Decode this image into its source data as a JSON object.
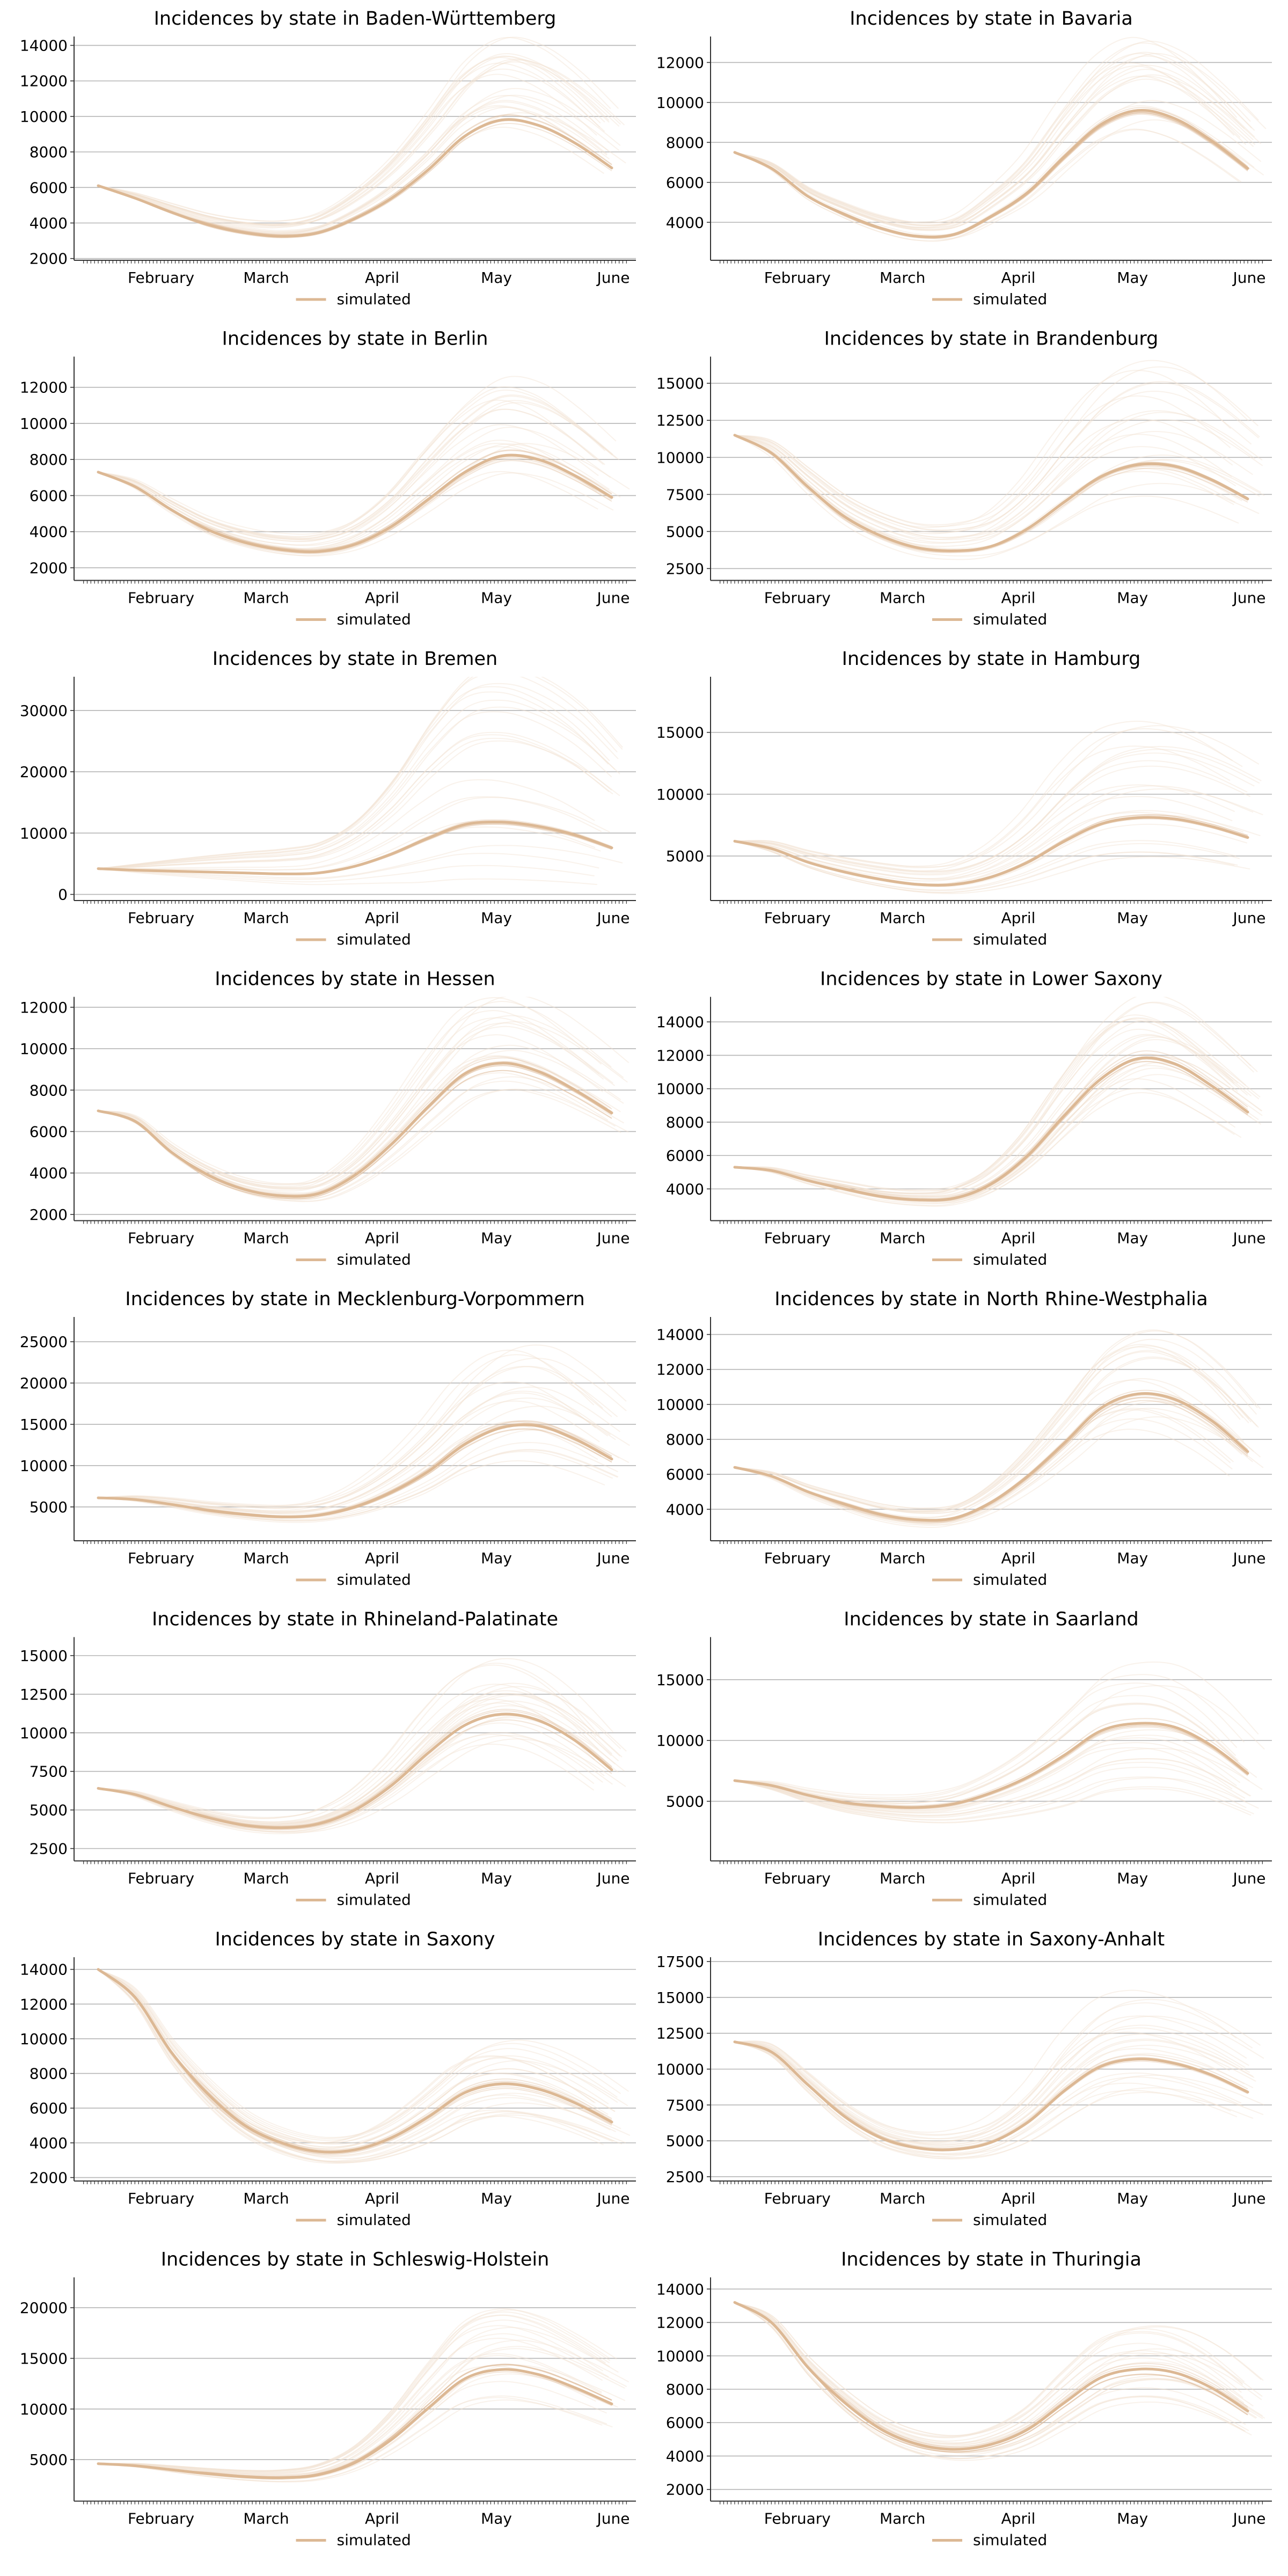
{
  "figure": {
    "accent_color": "#dcb894",
    "band_color": "#f2e3d3",
    "grid_color": "#b5b5b5",
    "axis_color": "#333333"
  },
  "chart_data": [
    {
      "type": "line",
      "title": "Incidences by state in Baden-Württemberg",
      "categories": [
        "February",
        "March",
        "April",
        "May",
        "June"
      ],
      "x": [
        0,
        10,
        20,
        30,
        40,
        50,
        60,
        70,
        80,
        90,
        100,
        110,
        120,
        130,
        140
      ],
      "yticks": [
        2000,
        4000,
        6000,
        8000,
        10000,
        12000,
        14000
      ],
      "ylim": [
        1900,
        14500
      ],
      "legend": [
        "simulated"
      ],
      "legend_position": "bottom-center",
      "grid": "horizontal",
      "series": [
        {
          "name": "simulated",
          "values": [
            6100,
            5400,
            4600,
            3900,
            3450,
            3250,
            3450,
            4250,
            5400,
            7000,
            8900,
            9800,
            9500,
            8500,
            7100
          ]
        }
      ],
      "spread": [
        0.95,
        1.45
      ]
    },
    {
      "type": "line",
      "title": "Incidences by state in Bavaria",
      "categories": [
        "February",
        "March",
        "April",
        "May",
        "June"
      ],
      "x": [
        0,
        10,
        20,
        30,
        40,
        50,
        60,
        70,
        80,
        90,
        100,
        110,
        120,
        130,
        140
      ],
      "yticks": [
        4000,
        6000,
        8000,
        10000,
        12000
      ],
      "ylim": [
        2100,
        13300
      ],
      "legend": [
        "simulated"
      ],
      "legend_position": "bottom-center",
      "grid": "horizontal",
      "series": [
        {
          "name": "simulated",
          "values": [
            7500,
            6700,
            5300,
            4400,
            3700,
            3300,
            3400,
            4300,
            5500,
            7300,
            8900,
            9600,
            9200,
            8100,
            6700
          ]
        }
      ],
      "spread": [
        0.9,
        1.4
      ]
    },
    {
      "type": "line",
      "title": "Incidences by state in Berlin",
      "categories": [
        "February",
        "March",
        "April",
        "May",
        "June"
      ],
      "x": [
        0,
        10,
        20,
        30,
        40,
        50,
        60,
        70,
        80,
        90,
        100,
        110,
        120,
        130,
        140
      ],
      "yticks": [
        2000,
        4000,
        6000,
        8000,
        10000,
        12000
      ],
      "ylim": [
        1300,
        13700
      ],
      "legend": [
        "simulated"
      ],
      "legend_position": "bottom-center",
      "grid": "horizontal",
      "series": [
        {
          "name": "simulated",
          "values": [
            7300,
            6500,
            5200,
            4100,
            3400,
            3000,
            2900,
            3300,
            4300,
            5800,
            7300,
            8200,
            8000,
            7100,
            5900
          ]
        }
      ],
      "spread": [
        0.8,
        1.6
      ]
    },
    {
      "type": "line",
      "title": "Incidences by state in Brandenburg",
      "categories": [
        "February",
        "March",
        "April",
        "May",
        "June"
      ],
      "x": [
        0,
        10,
        20,
        30,
        40,
        50,
        60,
        70,
        80,
        90,
        100,
        110,
        120,
        130,
        140
      ],
      "yticks": [
        2500,
        5000,
        7500,
        10000,
        12500,
        15000
      ],
      "ylim": [
        1700,
        16800
      ],
      "legend": [
        "simulated"
      ],
      "legend_position": "bottom-center",
      "grid": "horizontal",
      "series": [
        {
          "name": "simulated",
          "values": [
            11500,
            10300,
            8000,
            6000,
            4700,
            3900,
            3700,
            4000,
            5200,
            7000,
            8700,
            9500,
            9400,
            8500,
            7200
          ]
        }
      ],
      "spread": [
        0.75,
        1.7
      ]
    },
    {
      "type": "line",
      "title": "Incidences by state in Bremen",
      "categories": [
        "February",
        "March",
        "April",
        "May",
        "June"
      ],
      "x": [
        0,
        10,
        20,
        30,
        40,
        50,
        60,
        70,
        80,
        90,
        100,
        110,
        120,
        130,
        140
      ],
      "yticks": [
        0,
        10000,
        20000,
        30000
      ],
      "ylim": [
        -1000,
        35500
      ],
      "legend": [
        "simulated"
      ],
      "legend_position": "bottom-center",
      "grid": "horizontal",
      "series": [
        {
          "name": "simulated",
          "values": [
            4200,
            3950,
            3800,
            3650,
            3500,
            3350,
            3500,
            4600,
            6600,
            9200,
            11400,
            11800,
            11100,
            9700,
            7600
          ]
        }
      ],
      "spread": [
        0.3,
        3.0
      ]
    },
    {
      "type": "line",
      "title": "Incidences by state in Hamburg",
      "categories": [
        "February",
        "March",
        "April",
        "May",
        "June"
      ],
      "x": [
        0,
        10,
        20,
        30,
        40,
        50,
        60,
        70,
        80,
        90,
        100,
        110,
        120,
        130,
        140
      ],
      "yticks": [
        5000,
        10000,
        15000
      ],
      "ylim": [
        1400,
        19500
      ],
      "legend": [
        "simulated"
      ],
      "legend_position": "bottom-center",
      "grid": "horizontal",
      "series": [
        {
          "name": "simulated",
          "values": [
            6200,
            5600,
            4500,
            3700,
            3100,
            2700,
            2700,
            3300,
            4500,
            6200,
            7600,
            8100,
            8000,
            7400,
            6500
          ]
        }
      ],
      "spread": [
        0.6,
        2.1
      ]
    },
    {
      "type": "line",
      "title": "Incidences by state in Hessen",
      "categories": [
        "February",
        "March",
        "April",
        "May",
        "June"
      ],
      "x": [
        0,
        10,
        20,
        30,
        40,
        50,
        60,
        70,
        80,
        90,
        100,
        110,
        120,
        130,
        140
      ],
      "yticks": [
        2000,
        4000,
        6000,
        8000,
        10000,
        12000
      ],
      "ylim": [
        1700,
        12500
      ],
      "legend": [
        "simulated"
      ],
      "legend_position": "bottom-center",
      "grid": "horizontal",
      "series": [
        {
          "name": "simulated",
          "values": [
            7000,
            6500,
            5000,
            3900,
            3200,
            2900,
            3000,
            3900,
            5400,
            7200,
            8800,
            9300,
            8900,
            8000,
            6900
          ]
        }
      ],
      "spread": [
        0.85,
        1.35
      ]
    },
    {
      "type": "line",
      "title": "Incidences by state in Lower Saxony",
      "categories": [
        "February",
        "March",
        "April",
        "May",
        "June"
      ],
      "x": [
        0,
        10,
        20,
        30,
        40,
        50,
        60,
        70,
        80,
        90,
        100,
        110,
        120,
        130,
        140
      ],
      "yticks": [
        4000,
        6000,
        8000,
        10000,
        12000,
        14000
      ],
      "ylim": [
        2100,
        15500
      ],
      "legend": [
        "simulated"
      ],
      "legend_position": "bottom-center",
      "grid": "horizontal",
      "series": [
        {
          "name": "simulated",
          "values": [
            5300,
            5100,
            4500,
            4000,
            3550,
            3350,
            3450,
            4300,
            6000,
            8400,
            10600,
            11800,
            11500,
            10200,
            8600
          ]
        }
      ],
      "spread": [
        0.8,
        1.3
      ]
    },
    {
      "type": "line",
      "title": "Incidences by state in Mecklenburg-Vorpommern",
      "categories": [
        "February",
        "March",
        "April",
        "May",
        "June"
      ],
      "x": [
        0,
        10,
        20,
        30,
        40,
        50,
        60,
        70,
        80,
        90,
        100,
        110,
        120,
        130,
        140
      ],
      "yticks": [
        5000,
        10000,
        15000,
        20000,
        25000
      ],
      "ylim": [
        900,
        28000
      ],
      "legend": [
        "simulated"
      ],
      "legend_position": "bottom-center",
      "grid": "horizontal",
      "series": [
        {
          "name": "simulated",
          "values": [
            6100,
            5900,
            5300,
            4600,
            4100,
            3800,
            4000,
            5000,
            6800,
            9300,
            12600,
            14600,
            14800,
            13200,
            10800
          ]
        }
      ],
      "spread": [
        0.7,
        1.6
      ]
    },
    {
      "type": "line",
      "title": "Incidences by state in North Rhine-Westphalia",
      "categories": [
        "February",
        "March",
        "April",
        "May",
        "June"
      ],
      "x": [
        0,
        10,
        20,
        30,
        40,
        50,
        60,
        70,
        80,
        90,
        100,
        110,
        120,
        130,
        140
      ],
      "yticks": [
        4000,
        6000,
        8000,
        10000,
        12000,
        14000
      ],
      "ylim": [
        2200,
        15000
      ],
      "legend": [
        "simulated"
      ],
      "legend_position": "bottom-center",
      "grid": "horizontal",
      "series": [
        {
          "name": "simulated",
          "values": [
            6400,
            5900,
            5000,
            4300,
            3700,
            3400,
            3500,
            4400,
            5900,
            7800,
            9800,
            10600,
            10300,
            9100,
            7300
          ]
        }
      ],
      "spread": [
        0.8,
        1.35
      ]
    },
    {
      "type": "line",
      "title": "Incidences by state in Rhineland-Palatinate",
      "categories": [
        "February",
        "March",
        "April",
        "May",
        "June"
      ],
      "x": [
        0,
        10,
        20,
        30,
        40,
        50,
        60,
        70,
        80,
        90,
        100,
        110,
        120,
        130,
        140
      ],
      "yticks": [
        2500,
        5000,
        7500,
        10000,
        12500,
        15000
      ],
      "ylim": [
        1700,
        16200
      ],
      "legend": [
        "simulated"
      ],
      "legend_position": "bottom-center",
      "grid": "horizontal",
      "series": [
        {
          "name": "simulated",
          "values": [
            6400,
            6000,
            5200,
            4500,
            4000,
            3850,
            4100,
            5000,
            6600,
            8700,
            10500,
            11200,
            10800,
            9500,
            7600
          ]
        }
      ],
      "spread": [
        0.8,
        1.35
      ]
    },
    {
      "type": "line",
      "title": "Incidences by state in Saarland",
      "categories": [
        "February",
        "March",
        "April",
        "May",
        "June"
      ],
      "x": [
        0,
        10,
        20,
        30,
        40,
        50,
        60,
        70,
        80,
        90,
        100,
        110,
        120,
        130,
        140
      ],
      "yticks": [
        5000,
        10000,
        15000
      ],
      "ylim": [
        100,
        18500
      ],
      "legend": [
        "simulated"
      ],
      "legend_position": "bottom-center",
      "grid": "horizontal",
      "series": [
        {
          "name": "simulated",
          "values": [
            6700,
            6300,
            5500,
            4900,
            4600,
            4500,
            4800,
            5700,
            7000,
            8800,
            10800,
            11400,
            11100,
            9600,
            7300
          ]
        }
      ],
      "spread": [
        0.55,
        1.45
      ]
    },
    {
      "type": "line",
      "title": "Incidences by state in Saxony",
      "categories": [
        "February",
        "March",
        "April",
        "May",
        "June"
      ],
      "x": [
        0,
        10,
        20,
        30,
        40,
        50,
        60,
        70,
        80,
        90,
        100,
        110,
        120,
        130,
        140
      ],
      "yticks": [
        2000,
        4000,
        6000,
        8000,
        10000,
        12000,
        14000
      ],
      "ylim": [
        1800,
        14700
      ],
      "legend": [
        "simulated"
      ],
      "legend_position": "bottom-center",
      "grid": "horizontal",
      "series": [
        {
          "name": "simulated",
          "values": [
            14000,
            12400,
            9200,
            6800,
            5000,
            4000,
            3500,
            3600,
            4300,
            5500,
            6900,
            7400,
            7100,
            6300,
            5200
          ]
        }
      ],
      "spread": [
        0.7,
        1.35
      ]
    },
    {
      "type": "line",
      "title": "Incidences by state in Saxony-Anhalt",
      "categories": [
        "February",
        "March",
        "April",
        "May",
        "June"
      ],
      "x": [
        0,
        10,
        20,
        30,
        40,
        50,
        60,
        70,
        80,
        90,
        100,
        110,
        120,
        130,
        140
      ],
      "yticks": [
        2500,
        5000,
        7500,
        10000,
        12500,
        15000,
        17500
      ],
      "ylim": [
        2200,
        17800
      ],
      "legend": [
        "simulated"
      ],
      "legend_position": "bottom-center",
      "grid": "horizontal",
      "series": [
        {
          "name": "simulated",
          "values": [
            11900,
            11200,
            8900,
            6700,
            5200,
            4500,
            4400,
            4900,
            6300,
            8500,
            10200,
            10700,
            10400,
            9600,
            8400
          ]
        }
      ],
      "spread": [
        0.75,
        1.45
      ]
    },
    {
      "type": "line",
      "title": "Incidences by state in Schleswig-Holstein",
      "categories": [
        "February",
        "March",
        "April",
        "May",
        "June"
      ],
      "x": [
        0,
        10,
        20,
        30,
        40,
        50,
        60,
        70,
        80,
        90,
        100,
        110,
        120,
        130,
        140
      ],
      "yticks": [
        5000,
        10000,
        15000,
        20000
      ],
      "ylim": [
        900,
        23000
      ],
      "legend": [
        "simulated"
      ],
      "legend_position": "bottom-center",
      "grid": "horizontal",
      "series": [
        {
          "name": "simulated",
          "values": [
            4600,
            4400,
            4000,
            3600,
            3300,
            3200,
            3500,
            4700,
            7000,
            10100,
            13000,
            13900,
            13400,
            12100,
            10500
          ]
        }
      ],
      "spread": [
        0.75,
        1.5
      ]
    },
    {
      "type": "line",
      "title": "Incidences by state in Thuringia",
      "categories": [
        "February",
        "March",
        "April",
        "May",
        "June"
      ],
      "x": [
        0,
        10,
        20,
        30,
        40,
        50,
        60,
        70,
        80,
        90,
        100,
        110,
        120,
        130,
        140
      ],
      "yticks": [
        2000,
        4000,
        6000,
        8000,
        10000,
        12000,
        14000
      ],
      "ylim": [
        1300,
        14700
      ],
      "legend": [
        "simulated"
      ],
      "legend_position": "bottom-center",
      "grid": "horizontal",
      "series": [
        {
          "name": "simulated",
          "values": [
            13200,
            12000,
            9300,
            7200,
            5600,
            4700,
            4400,
            4700,
            5600,
            7200,
            8700,
            9200,
            9000,
            8100,
            6700
          ]
        }
      ],
      "spread": [
        0.75,
        1.4
      ]
    }
  ]
}
